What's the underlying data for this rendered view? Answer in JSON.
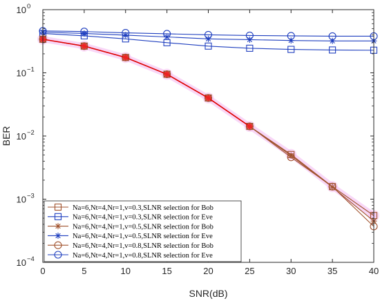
{
  "chart_data": {
    "type": "line",
    "xlabel": "SNR(dB)",
    "ylabel": "BER",
    "x_scale": "linear",
    "y_scale": "log",
    "xlim": [
      0,
      40
    ],
    "ylim": [
      0.0001,
      1
    ],
    "x_ticks": [
      "0",
      "5",
      "10",
      "15",
      "20",
      "25",
      "30",
      "35",
      "40"
    ],
    "grid": false,
    "legend_position": "bottom-left",
    "x": [
      0,
      5,
      10,
      15,
      20,
      25,
      30,
      35,
      40
    ],
    "series": [
      {
        "name": "Na=6,Nt=4,Nr=1,v=0.3,SLNR selection for Bob",
        "color": "#a0522d",
        "marker": "square",
        "values": [
          0.34,
          0.265,
          0.175,
          0.095,
          0.04,
          0.0142,
          0.0051,
          0.00158,
          0.00055
        ]
      },
      {
        "name": "Na=6,Nt=4,Nr=1,v=0.3,SLNR selection for Eve",
        "color": "#1f3fbf",
        "marker": "square",
        "values": [
          0.42,
          0.385,
          0.345,
          0.3,
          0.265,
          0.245,
          0.235,
          0.23,
          0.228
        ]
      },
      {
        "name": "Na=6,Nt=4,Nr=1,v=0.5,SLNR selection for Bob",
        "color": "#a0522d",
        "marker": "star",
        "values": [
          0.34,
          0.265,
          0.175,
          0.095,
          0.04,
          0.0142,
          0.0049,
          0.00155,
          0.00045
        ]
      },
      {
        "name": "Na=6,Nt=4,Nr=1,v=0.5,SLNR selection for Eve",
        "color": "#1f3fbf",
        "marker": "star",
        "values": [
          0.44,
          0.42,
          0.395,
          0.37,
          0.345,
          0.335,
          0.325,
          0.32,
          0.32
        ]
      },
      {
        "name": "Na=6,Nt=4,Nr=1,v=0.8,SLNR selection for Bob",
        "color": "#a0522d",
        "marker": "circle",
        "values": [
          0.34,
          0.265,
          0.175,
          0.095,
          0.04,
          0.0142,
          0.0046,
          0.00158,
          0.00037
        ]
      },
      {
        "name": "Na=6,Nt=4,Nr=1,v=0.8,SLNR selection for Eve",
        "color": "#1f3fbf",
        "marker": "circle",
        "values": [
          0.46,
          0.45,
          0.43,
          0.415,
          0.4,
          0.39,
          0.385,
          0.38,
          0.38
        ]
      }
    ]
  }
}
